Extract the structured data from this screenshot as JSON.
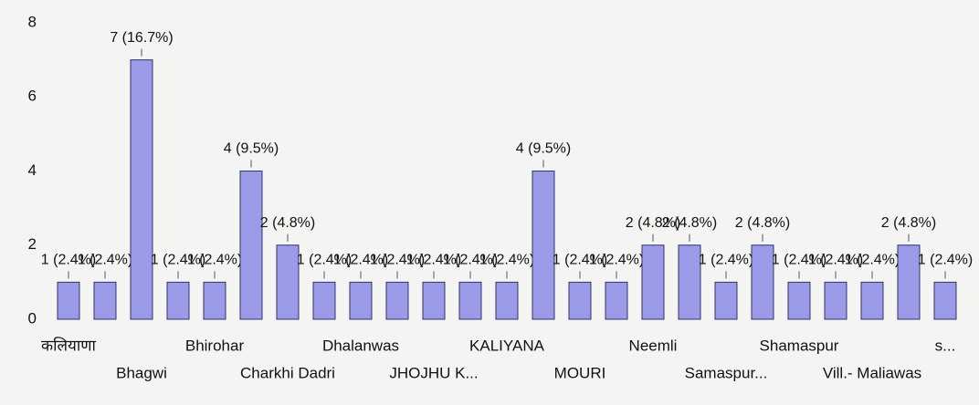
{
  "chart_data": {
    "type": "bar",
    "categories": [
      "कलियाणा",
      null,
      "Bhagwi",
      null,
      "Bhirohar",
      null,
      "Charkhi Dadri",
      null,
      "Dhalanwas",
      null,
      "JHOJHU K...",
      null,
      "KALIYANA",
      null,
      "MOURI",
      null,
      "Neemli",
      null,
      "Samaspur...",
      null,
      "Shamaspur",
      null,
      "Vill.- Maliawas",
      null,
      "s..."
    ],
    "values": [
      1,
      1,
      7,
      1,
      1,
      4,
      2,
      1,
      1,
      1,
      1,
      1,
      1,
      4,
      1,
      1,
      2,
      2,
      1,
      2,
      1,
      1,
      1,
      2,
      1
    ],
    "value_labels": [
      "1 (2.4%)",
      "1 (2.4%)",
      "7 (16.7%)",
      "1 (2.4%)",
      "1 (2.4%)",
      "4 (9.5%)",
      "2 (4.8%)",
      "1 (2.4%)",
      "1 (2.4%)",
      "1 (2.4%)",
      "1 (2.4%)",
      "1 (2.4%)",
      "1 (2.4%)",
      "4 (9.5%)",
      "1 (2.4%)",
      "1 (2.4%)",
      "2 (4.8%)",
      "2 (4.8%)",
      "1 (2.4%)",
      "2 (4.8%)",
      "1 (2.4%)",
      "1 (2.4%)",
      "1 (2.4%)",
      "2 (4.8%)",
      "1 (2.4%)"
    ],
    "color": "#9a9ae8",
    "ylim": [
      0,
      8
    ],
    "yticks": [
      0,
      2,
      4,
      6,
      8
    ],
    "grid": false
  }
}
